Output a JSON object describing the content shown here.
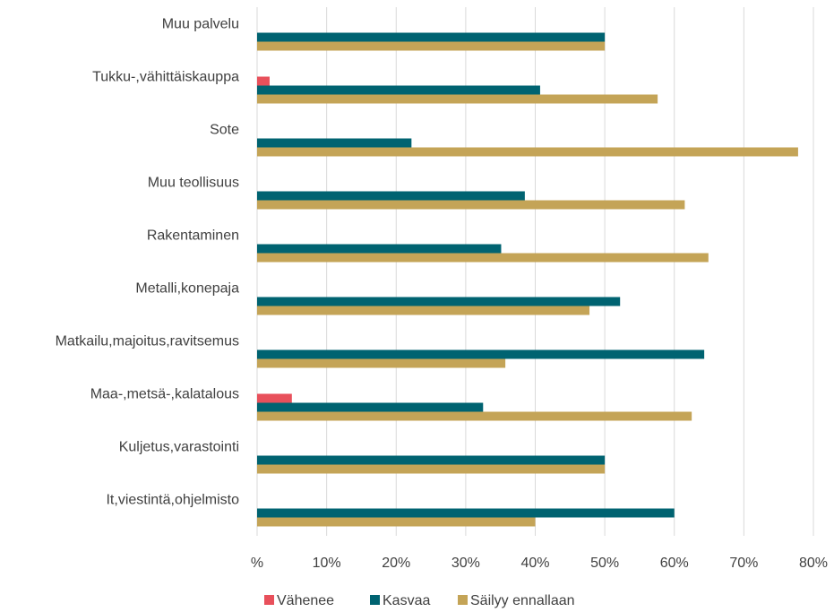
{
  "chart_data": {
    "type": "bar",
    "orientation": "horizontal",
    "categories": [
      "Muu palvelu",
      "Tukku-,vähittäiskauppa",
      "Sote",
      "Muu teollisuus",
      "Rakentaminen",
      "Metalli,konepaja",
      "Matkailu,majoitus,ravitsemus",
      "Maa-,metsä-,kalatalous",
      "Kuljetus,varastointi",
      "It,viestintä,ohjelmisto"
    ],
    "series": [
      {
        "name": "Vähenee",
        "color": "#e8505b",
        "values": [
          0,
          1.8,
          0,
          0,
          0,
          0,
          0,
          5.0,
          0,
          0
        ]
      },
      {
        "name": "Kasvaa",
        "color": "#006371",
        "values": [
          50.0,
          40.7,
          22.2,
          38.5,
          35.1,
          52.2,
          64.3,
          32.5,
          50.0,
          60.0
        ]
      },
      {
        "name": "Säilyy ennallaan",
        "color": "#c4a457",
        "values": [
          50.0,
          57.6,
          77.8,
          61.5,
          64.9,
          47.8,
          35.7,
          62.5,
          50.0,
          40.0
        ]
      }
    ],
    "x_ticks": [
      "%",
      "10%",
      "20%",
      "30%",
      "40%",
      "50%",
      "60%",
      "70%",
      "80%"
    ],
    "xlim": [
      0,
      80
    ],
    "grid": true,
    "legend_position": "bottom",
    "title": "",
    "xlabel": "",
    "ylabel": ""
  }
}
